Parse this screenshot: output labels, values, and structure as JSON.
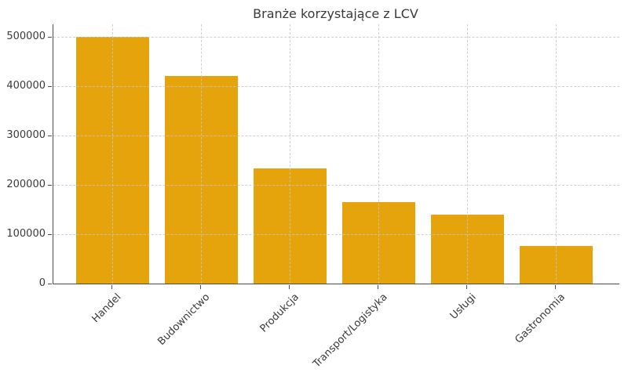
{
  "figure": {
    "title": "Branże korzystające z LCV"
  },
  "colors": {
    "bar": "#E5A30C",
    "grid": "#c7c7c7",
    "axis": "#4d4d4d",
    "text": "#3a3a3a",
    "background": "#ffffff"
  },
  "chart_data": {
    "type": "bar",
    "title": "Branże korzystające z LCV",
    "categories": [
      "Handel",
      "Budownictwo",
      "Produkcja",
      "Transport/Logistyka",
      "Usługi",
      "Gastronomia"
    ],
    "values": [
      500000,
      420000,
      233000,
      165000,
      140000,
      77000
    ],
    "xlabel": "",
    "ylabel": "",
    "ylim": [
      0,
      525000
    ],
    "yticks": [
      0,
      100000,
      200000,
      300000,
      400000,
      500000
    ],
    "ytick_labels": [
      "0",
      "100000",
      "200000",
      "300000",
      "400000",
      "500000"
    ],
    "grid": true,
    "grid_style": "dashed",
    "legend_position": "none",
    "bar_color": "#E5A30C",
    "x_tick_rotation": 45
  }
}
